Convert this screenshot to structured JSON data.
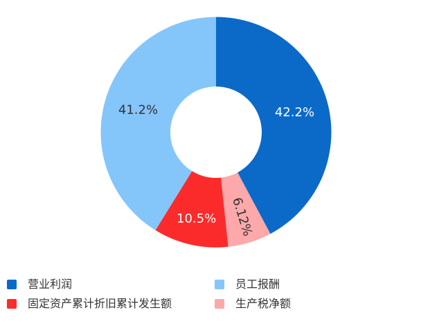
{
  "chart_data": {
    "type": "pie",
    "subtype": "donut",
    "start_angle": "top",
    "direction": "clockwise",
    "legend_position": "bottom-left-two-columns",
    "slices": [
      {
        "name": "营业利润",
        "value": 42.2,
        "label": "42.2%",
        "color": "#0b6ac8",
        "label_color": "#ffffff",
        "label_rotate": false
      },
      {
        "name": "生产税净额",
        "value": 6.12,
        "label": "6.12%",
        "color": "#fda8ab",
        "label_color": "#333333",
        "label_rotate": true
      },
      {
        "name": "固定资产累计折旧累计发生额",
        "value": 10.5,
        "label": "10.5%",
        "color": "#fc2b2b",
        "label_color": "#ffffff",
        "label_rotate": false
      },
      {
        "name": "员工报酬",
        "value": 41.2,
        "label": "41.2%",
        "color": "#85c6fa",
        "label_color": "#333333",
        "label_rotate": false
      }
    ]
  },
  "legend": {
    "items": [
      {
        "label": "营业利润",
        "color": "#0b6ac8"
      },
      {
        "label": "固定资产累计折旧累计发生额",
        "color": "#fc2b2b"
      },
      {
        "label": "员工报酬",
        "color": "#85c6fa"
      },
      {
        "label": "生产税净额",
        "color": "#fda8ab"
      }
    ]
  }
}
